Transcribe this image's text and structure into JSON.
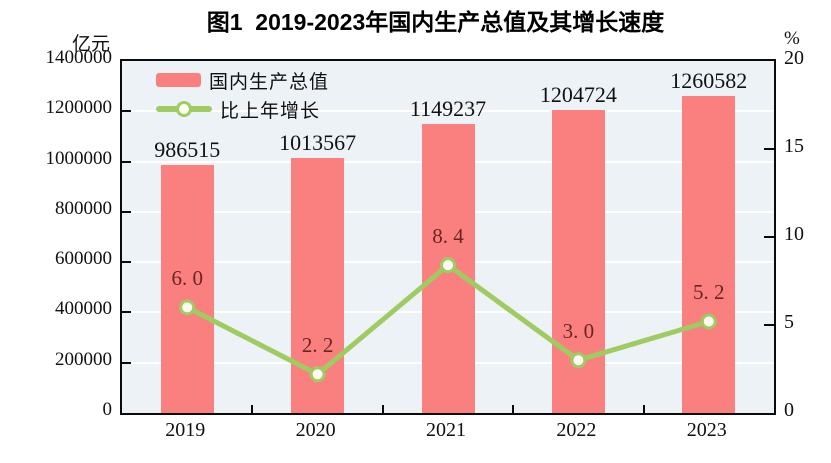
{
  "title": "图1  2019-2023年国内生产总值及其增长速度",
  "chart_data": {
    "type": "bar+line",
    "title": "图1  2019-2023年国内生产总值及其增长速度",
    "categories": [
      "2019",
      "2020",
      "2021",
      "2022",
      "2023"
    ],
    "series": [
      {
        "name": "国内生产总值",
        "type": "bar",
        "axis": "left",
        "color": "#FA7F7F",
        "values": [
          986515,
          1013567,
          1149237,
          1204724,
          1260582
        ],
        "value_labels": [
          "986515",
          "1013567",
          "1149237",
          "1204724",
          "1260582"
        ]
      },
      {
        "name": "比上年增长",
        "type": "line",
        "axis": "right",
        "color": "#9ECC62",
        "marker_fill": "#FFFFF6",
        "values": [
          6.0,
          2.2,
          8.4,
          3.0,
          5.2
        ],
        "value_labels": [
          "6. 0",
          "2. 2",
          "8. 4",
          "3. 0",
          "5. 2"
        ]
      }
    ],
    "left_axis": {
      "unit": "亿元",
      "min": 0,
      "max": 1400000,
      "step": 200000,
      "ticks": [
        "1400000",
        "1200000",
        "1000000",
        "800000",
        "600000",
        "400000",
        "200000",
        "0"
      ]
    },
    "right_axis": {
      "unit": "%",
      "min": 0,
      "max": 20,
      "step": 5,
      "ticks": [
        "20",
        "15",
        "10",
        "5",
        "0"
      ]
    },
    "grid": true,
    "legend_position": "top-left-inside",
    "colors": {
      "plot_background": "#ECF2F6",
      "gridline": "#FFFFFF",
      "axis_line": "#0B0B0B",
      "bar_fill": "#FA7F7F",
      "line_stroke": "#9ECC62",
      "line_value_label": "#6B2424",
      "bar_value_label": "#111111"
    }
  }
}
